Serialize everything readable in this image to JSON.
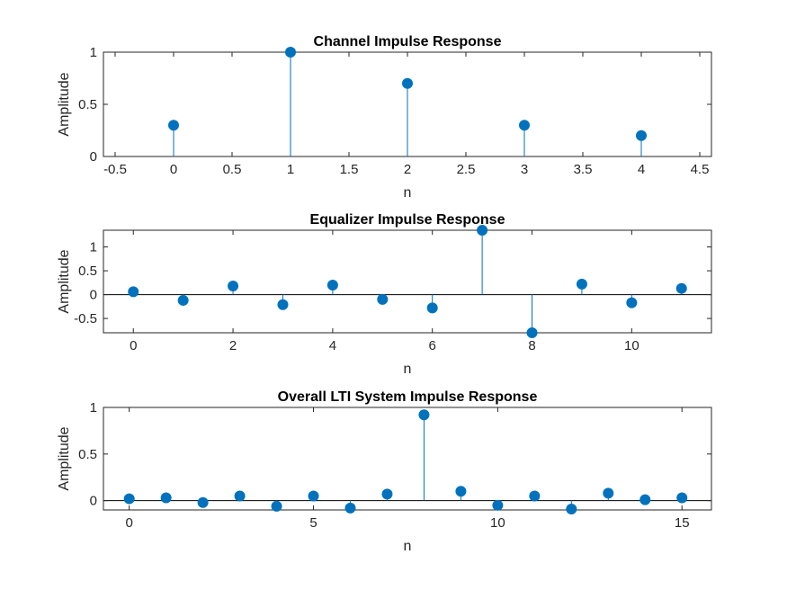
{
  "colors": {
    "stem": "#0072BD",
    "axis": "#262626",
    "zero_line": "#000000"
  },
  "chart_data": [
    {
      "type": "stem",
      "title": "Channel Impulse Response",
      "xlabel": "n",
      "ylabel": "Amplitude",
      "xlim": [
        -0.6,
        4.6
      ],
      "ylim": [
        0,
        1
      ],
      "xticks": [
        -0.5,
        0,
        0.5,
        1,
        1.5,
        2,
        2.5,
        3,
        3.5,
        4,
        4.5
      ],
      "xtick_labels": [
        "-0.5",
        "0",
        "0.5",
        "1",
        "1.5",
        "2",
        "2.5",
        "3",
        "3.5",
        "4",
        "4.5"
      ],
      "yticks": [
        0,
        0.5,
        1
      ],
      "ytick_labels": [
        "0",
        "0.5",
        "1"
      ],
      "x": [
        0,
        1,
        2,
        3,
        4
      ],
      "y": [
        0.3,
        1.0,
        0.7,
        0.3,
        0.2
      ]
    },
    {
      "type": "stem",
      "title": "Equalizer Impulse Response",
      "xlabel": "n",
      "ylabel": "Amplitude",
      "xlim": [
        -0.6,
        11.6
      ],
      "ylim": [
        -0.8,
        1.35
      ],
      "xticks": [
        0,
        2,
        4,
        6,
        8,
        10
      ],
      "xtick_labels": [
        "0",
        "2",
        "4",
        "6",
        "8",
        "10"
      ],
      "yticks": [
        -0.5,
        0,
        0.5,
        1
      ],
      "ytick_labels": [
        "-0.5",
        "0",
        "0.5",
        "1"
      ],
      "x": [
        0,
        1,
        2,
        3,
        4,
        5,
        6,
        7,
        8,
        9,
        10,
        11
      ],
      "y": [
        0.06,
        -0.12,
        0.18,
        -0.21,
        0.2,
        -0.1,
        -0.28,
        1.35,
        -0.8,
        0.22,
        -0.17,
        0.13
      ]
    },
    {
      "type": "stem",
      "title": "Overall LTI System Impulse Response",
      "xlabel": "n",
      "ylabel": "Amplitude",
      "xlim": [
        -0.7,
        15.8
      ],
      "ylim": [
        -0.1,
        1
      ],
      "xticks": [
        0,
        5,
        10,
        15
      ],
      "xtick_labels": [
        "0",
        "5",
        "10",
        "15"
      ],
      "yticks": [
        0,
        0.5,
        1
      ],
      "ytick_labels": [
        "0",
        "0.5",
        "1"
      ],
      "x": [
        0,
        1,
        2,
        3,
        4,
        5,
        6,
        7,
        8,
        9,
        10,
        11,
        12,
        13,
        14,
        15
      ],
      "y": [
        0.02,
        0.03,
        -0.02,
        0.05,
        -0.06,
        0.05,
        -0.08,
        0.07,
        0.92,
        0.1,
        -0.05,
        0.05,
        -0.09,
        0.08,
        0.01,
        0.03
      ]
    }
  ]
}
